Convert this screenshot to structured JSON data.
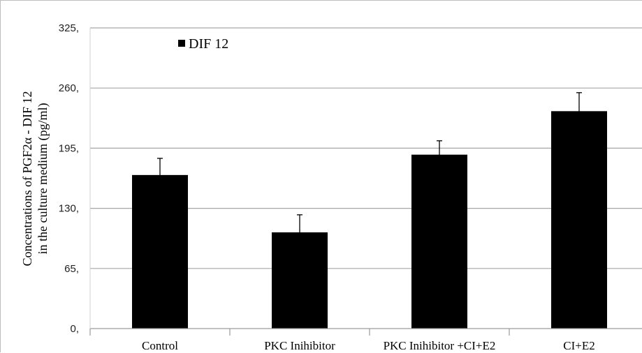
{
  "chart_data": {
    "type": "bar",
    "categories": [
      "Control",
      "PKC Inihibitor",
      "PKC Inihibitor +CI+E2",
      "CI+E2"
    ],
    "series": [
      {
        "name": "DIF 12",
        "values": [
          166,
          104,
          188,
          235
        ],
        "error": [
          18,
          19,
          15,
          20
        ],
        "color": "#000000"
      }
    ],
    "ylabel_line1": "Concentrations of PGF2α - DIF 12",
    "ylabel_line2": "in the culture medium (pg/ml)",
    "ylim": [
      0,
      325
    ],
    "yticks": [
      0,
      65,
      130,
      195,
      260,
      325
    ],
    "ytick_labels": [
      "0,",
      "65,",
      "130,",
      "195,",
      "260,",
      "325,"
    ],
    "grid": true,
    "gridline_color": "#a6a6a6",
    "legend_position": "top-left"
  }
}
